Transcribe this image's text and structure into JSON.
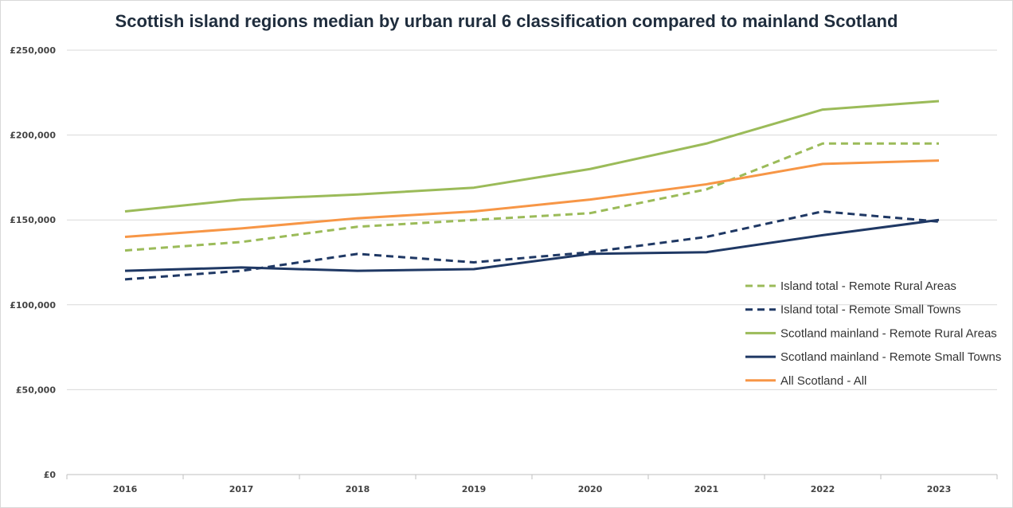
{
  "chart_data": {
    "type": "line",
    "title": "Scottish island regions median by urban rural 6 classification compared to mainland Scotland",
    "xlabel": "",
    "ylabel": "",
    "categories": [
      "2016",
      "2017",
      "2018",
      "2019",
      "2020",
      "2021",
      "2022",
      "2023"
    ],
    "ylim": [
      0,
      250000
    ],
    "yticks": [
      0,
      50000,
      100000,
      150000,
      200000,
      250000
    ],
    "ytick_labels": [
      "£0",
      "£50,000",
      "£100,000",
      "£150,000",
      "£200,000",
      "£250,000"
    ],
    "grid": true,
    "legend_position": "bottom-right",
    "series": [
      {
        "name": "Island total - Remote Rural Areas",
        "color": "#9bbb59",
        "dashed": true,
        "values": [
          132000,
          137000,
          146000,
          150000,
          154000,
          168000,
          195000,
          195000
        ]
      },
      {
        "name": "Island total - Remote Small Towns",
        "color": "#1f3864",
        "dashed": true,
        "values": [
          115000,
          120000,
          130000,
          125000,
          131000,
          140000,
          155000,
          149000
        ]
      },
      {
        "name": "Scotland mainland - Remote Rural Areas",
        "color": "#9bbb59",
        "dashed": false,
        "values": [
          155000,
          162000,
          165000,
          169000,
          180000,
          195000,
          215000,
          220000
        ]
      },
      {
        "name": "Scotland mainland - Remote Small Towns",
        "color": "#1f3864",
        "dashed": false,
        "values": [
          120000,
          122000,
          120000,
          121000,
          130000,
          131000,
          141000,
          150000
        ]
      },
      {
        "name": "All Scotland - All",
        "color": "#f79646",
        "dashed": false,
        "values": [
          140000,
          145000,
          151000,
          155000,
          162000,
          171000,
          183000,
          185000
        ]
      }
    ]
  }
}
